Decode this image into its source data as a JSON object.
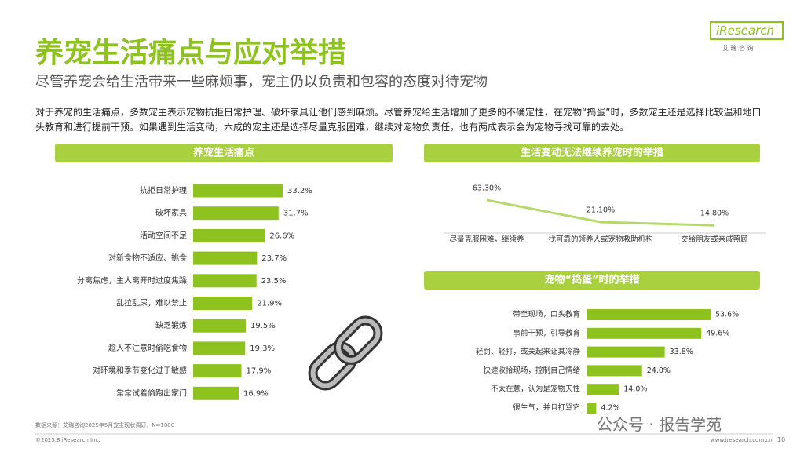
{
  "header": {
    "title": "养宠生活痛点与应对举措",
    "subtitle": "尽管养宠会给生活带来一些麻烦事，宠主仍以负责和包容的态度对待宠物",
    "intro": "对于养宠的生活痛点，多数宠主表示宠物抗拒日常护理、破坏家具让他们感到麻烦。尽管养宠给生活增加了更多的不确定性，在宠物“捣蛋”时，多数宠主还是选择比较温和地口头教育和进行提前干预。如果遇到生活变动，六成的宠主还是选择尽量克服困难，继续对宠物负责任，也有两成表示会为宠物寻找可靠的去处。"
  },
  "logo": {
    "brand": "iResearch",
    "cn": "艾 瑞 咨 询"
  },
  "chart_data": [
    {
      "type": "bar",
      "title": "养宠生活痛点",
      "color": "#8dc21f",
      "categories": [
        "抗拒日常护理",
        "破坏家具",
        "活动空间不足",
        "对新食物不适应、挑食",
        "分离焦虑，主人离开时过度焦躁",
        "乱拉乱尿，难以禁止",
        "缺乏锻炼",
        "趁人不注意时偷吃食物",
        "对环境和季节变化过于敏感",
        "常常试着偷跑出家门"
      ],
      "values": [
        33.2,
        31.7,
        26.6,
        23.7,
        23.5,
        21.9,
        19.5,
        19.3,
        17.9,
        16.9
      ],
      "value_labels": [
        "33.2%",
        "31.7%",
        "26.6%",
        "23.7%",
        "23.5%",
        "21.9%",
        "19.5%",
        "19.3%",
        "17.9%",
        "16.9%"
      ]
    },
    {
      "type": "line",
      "title": "生活变动无法继续养宠时的举措",
      "color": "#b5d96a",
      "categories": [
        "尽量克服困难，继续养",
        "找可靠的领养人或宠物救助机构",
        "交给朋友或亲戚照顾"
      ],
      "values": [
        63.3,
        21.1,
        14.8
      ],
      "value_labels": [
        "63.30%",
        "21.10%",
        "14.80%"
      ]
    },
    {
      "type": "bar",
      "title": "宠物“捣蛋”时的举措",
      "color": "#8dc21f",
      "categories": [
        "带至现场，口头教育",
        "事前干预，引导教育",
        "轻罚、轻打，或关起来让其冷静",
        "快速收拾现场，控制自己情绪",
        "不太在意，认为是宠物天性",
        "很生气，并且打骂它"
      ],
      "values": [
        53.6,
        49.6,
        33.8,
        24,
        14,
        4.2
      ],
      "value_labels": [
        "53.6%",
        "49.6%",
        "33.8%",
        "24.0%",
        "14.0%",
        "4.2%"
      ]
    }
  ],
  "footer": {
    "source": "数据来源：艾瑞咨询2025年5月宠主现状调研，N=1000",
    "copyright": "©2025.8 iResearch Inc.",
    "url": "www.iresearch.com.cn",
    "page": "10"
  },
  "watermark": "公众号 · 报告学苑"
}
